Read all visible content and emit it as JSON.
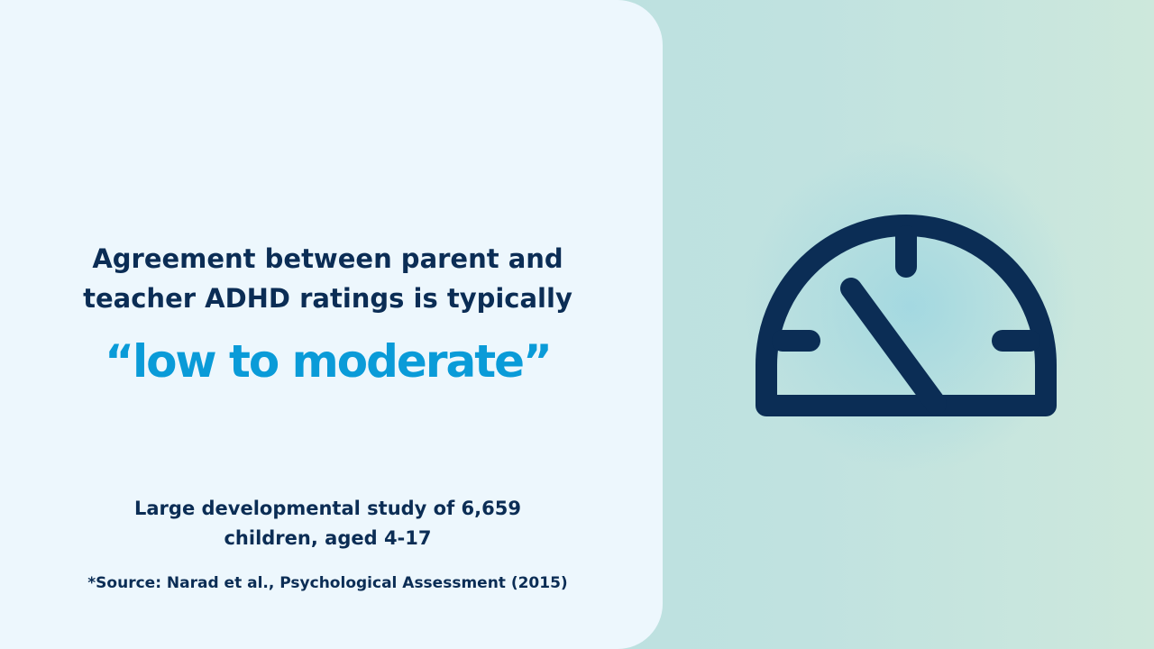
{
  "heading": {
    "line1": "Agreement between parent and",
    "line2": "teacher ADHD ratings is typically",
    "highlight": "“low to moderate”"
  },
  "study": {
    "line1": "Large developmental study of 6,659",
    "line2": "children, aged 4-17"
  },
  "source": "*Source: Narad et al., Psychological Assessment (2015)"
}
